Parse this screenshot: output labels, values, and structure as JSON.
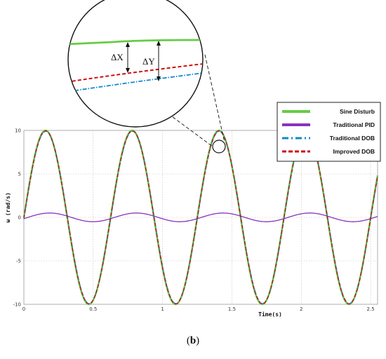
{
  "chart_data": {
    "type": "line",
    "ylabel": "ω (rad/s)",
    "xlabel": "Time(s)",
    "xlim": [
      0,
      2.55
    ],
    "ylim": [
      -10,
      10
    ],
    "x_ticks": [
      "0",
      "0.5",
      "1",
      "1.5",
      "2",
      "2.5"
    ],
    "x_tick_values": [
      0,
      0.5,
      1,
      1.5,
      2,
      2.5
    ],
    "y_ticks": [
      "10",
      "5",
      "0",
      "-5",
      "-10"
    ],
    "y_tick_values": [
      10,
      5,
      0,
      -5,
      -10
    ],
    "grid": true,
    "legend_position": "top-right",
    "series": [
      {
        "name": "Sine Disturb",
        "color": "#66cc44",
        "style": "solid",
        "function": "sine",
        "amplitude": 10,
        "period": 0.625,
        "phase": 0
      },
      {
        "name": "Traditional PID",
        "color": "#8833bb",
        "style": "solid",
        "function": "sine",
        "amplitude": 0.5,
        "period": 0.625,
        "phase": 0.3
      },
      {
        "name": "Traditional DOB",
        "color": "#1188cc",
        "style": "dashdot",
        "function": "sine",
        "amplitude": 9.9,
        "period": 0.625,
        "phase": 0.02
      },
      {
        "name": "Improved DOB",
        "color": "#cc1111",
        "style": "dashed",
        "function": "sine",
        "amplitude": 9.95,
        "period": 0.625,
        "phase": 0.01
      }
    ],
    "annotations": {
      "delta_x": "ΔX",
      "delta_y": "ΔY",
      "zoom_point": [
        1.41,
        10
      ]
    }
  },
  "caption": {
    "open": "(",
    "letter": "b",
    "close": ")"
  }
}
